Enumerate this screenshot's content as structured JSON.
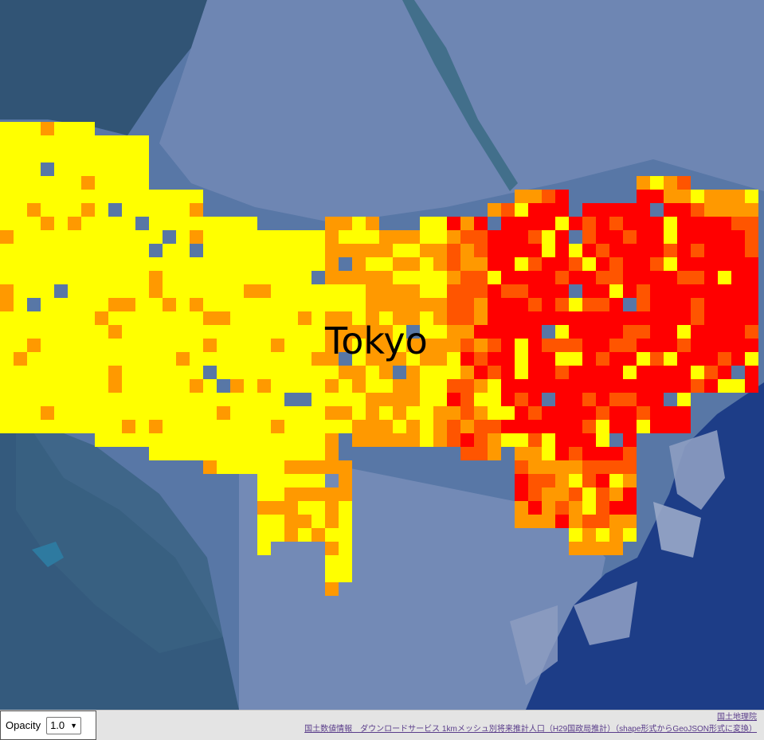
{
  "map": {
    "city_label": "Tokyo",
    "colors": {
      "land": "#5b7aa8",
      "urban_light": "#8ea3c7",
      "forest": "#2c4f6e",
      "water": "#1f3f86",
      "mesh_low": "#ffff00",
      "mesh_mid": "#ff9900",
      "mesh_high": "#ff5500",
      "mesh_top": "#ff0000"
    }
  },
  "opacity_control": {
    "label": "Opacity",
    "selected": "1.0"
  },
  "attribution": {
    "line1": "国土地理院",
    "line2": "国土数値情報　ダウンロードサービス 1kmメッシュ別将来推計人口（H29国政局推計）（shape形式からGeoJSON形式に変換）"
  }
}
